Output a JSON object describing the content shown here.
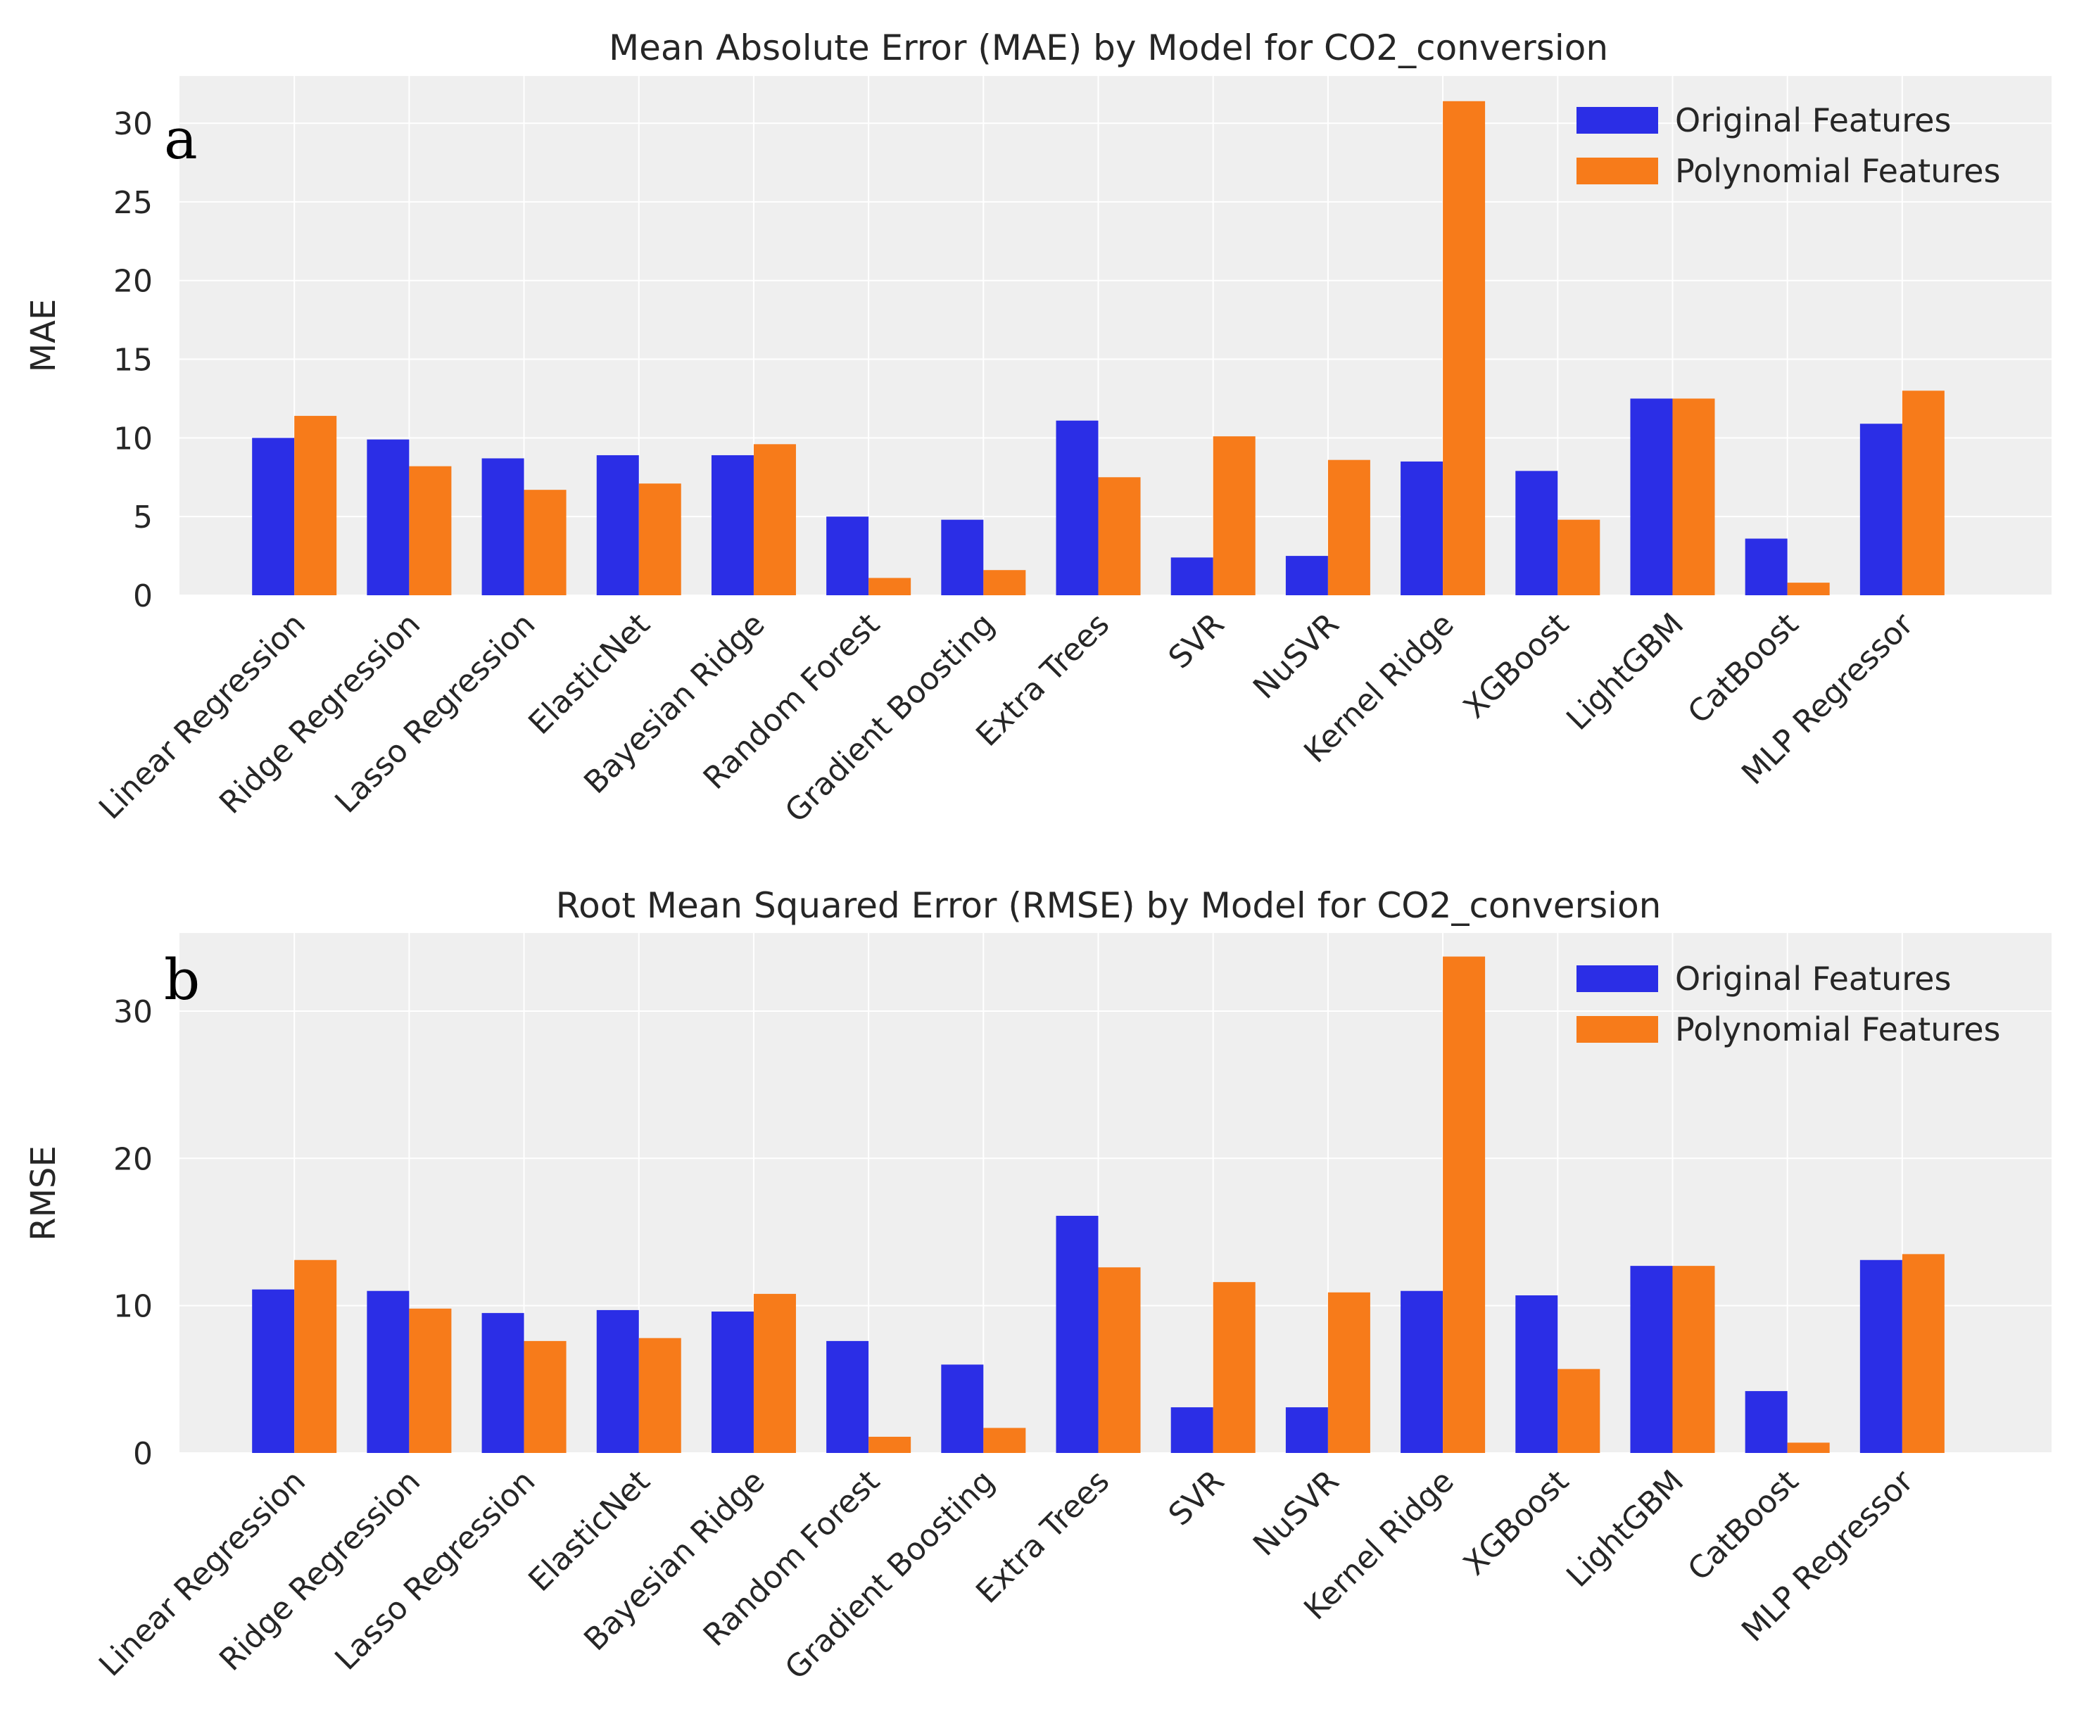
{
  "chart_data": [
    {
      "type": "bar",
      "panel_label": "a",
      "title": "Mean Absolute Error (MAE) by Model for CO2_conversion",
      "xlabel": "",
      "ylabel": "MAE",
      "ylim": [
        0,
        33
      ],
      "yticks": [
        0,
        5,
        10,
        15,
        20,
        25,
        30
      ],
      "grid": true,
      "legend_position": "top-right",
      "categories": [
        "Linear Regression",
        "Ridge Regression",
        "Lasso Regression",
        "ElasticNet",
        "Bayesian Ridge",
        "Random Forest",
        "Gradient Boosting",
        "Extra Trees",
        "SVR",
        "NuSVR",
        "Kernel Ridge",
        "XGBoost",
        "LightGBM",
        "CatBoost",
        "MLP Regressor"
      ],
      "series": [
        {
          "name": "Original Features",
          "color": "#2b2ee6",
          "values": [
            10.0,
            9.9,
            8.7,
            8.9,
            8.9,
            5.0,
            4.8,
            11.1,
            2.4,
            2.5,
            8.5,
            7.9,
            12.5,
            3.6,
            10.9
          ]
        },
        {
          "name": "Polynomial Features",
          "color": "#f77b1a",
          "values": [
            11.4,
            8.2,
            6.7,
            7.1,
            9.6,
            1.1,
            1.6,
            7.5,
            10.1,
            8.6,
            31.4,
            4.8,
            12.5,
            0.8,
            13.0
          ]
        }
      ]
    },
    {
      "type": "bar",
      "panel_label": "b",
      "title": "Root Mean Squared Error (RMSE) by Model for CO2_conversion",
      "xlabel": "",
      "ylabel": "RMSE",
      "ylim": [
        0,
        35.3
      ],
      "yticks": [
        0,
        10,
        20,
        30
      ],
      "grid": true,
      "legend_position": "top-right",
      "categories": [
        "Linear Regression",
        "Ridge Regression",
        "Lasso Regression",
        "ElasticNet",
        "Bayesian Ridge",
        "Random Forest",
        "Gradient Boosting",
        "Extra Trees",
        "SVR",
        "NuSVR",
        "Kernel Ridge",
        "XGBoost",
        "LightGBM",
        "CatBoost",
        "MLP Regressor"
      ],
      "series": [
        {
          "name": "Original Features",
          "color": "#2b2ee6",
          "values": [
            11.1,
            11.0,
            9.5,
            9.7,
            9.6,
            7.6,
            6.0,
            16.1,
            3.1,
            3.1,
            11.0,
            10.7,
            12.7,
            4.2,
            13.1
          ]
        },
        {
          "name": "Polynomial Features",
          "color": "#f77b1a",
          "values": [
            13.1,
            9.8,
            7.6,
            7.8,
            10.8,
            1.1,
            1.7,
            12.6,
            11.6,
            10.9,
            33.7,
            5.7,
            12.7,
            0.7,
            13.5
          ]
        }
      ]
    }
  ]
}
